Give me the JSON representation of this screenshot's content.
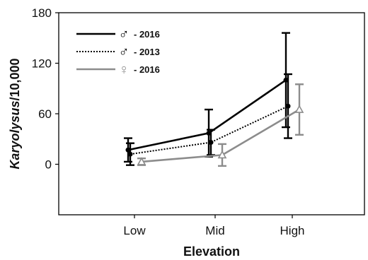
{
  "chart_data": {
    "type": "line",
    "xlabel": "Elevation",
    "ylabel_italic": "Karyolysus",
    "ylabel_rest": "/10,000",
    "categories": [
      "Low",
      "Mid",
      "High"
    ],
    "y_ticks": [
      0,
      60,
      120,
      180
    ],
    "ylim": [
      -60,
      180
    ],
    "grid": false,
    "legend_position": "top-left",
    "series": [
      {
        "name": "- 2016",
        "symbol": "♂",
        "style": "solid",
        "color": "#000000",
        "marker": "circle",
        "values": [
          17,
          37,
          100
        ],
        "errors": [
          14,
          28,
          56
        ]
      },
      {
        "name": "- 2013",
        "symbol": "♂",
        "style": "dotted",
        "color": "#000000",
        "marker": "circle",
        "values": [
          12,
          26,
          69
        ],
        "errors": [
          13,
          15,
          38
        ]
      },
      {
        "name": "- 2016",
        "symbol": "♀",
        "style": "solid",
        "color": "#8c8c8c",
        "marker": "triangle",
        "values": [
          3,
          11,
          65
        ],
        "errors": [
          4,
          13,
          30
        ]
      }
    ]
  }
}
